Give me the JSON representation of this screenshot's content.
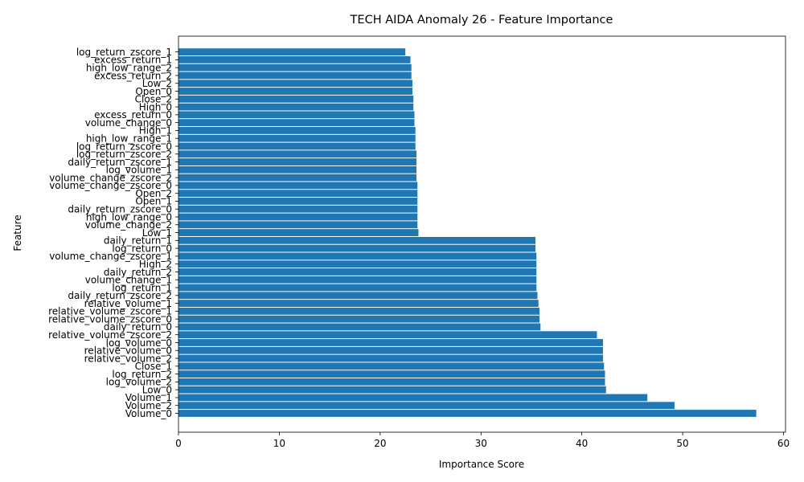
{
  "chart_data": {
    "type": "bar",
    "orientation": "horizontal",
    "title": "TECH AIDA Anomaly 26 - Feature Importance",
    "xlabel": "Importance Score",
    "ylabel": "Feature",
    "xlim": [
      0,
      60.2
    ],
    "xticks": [
      0,
      10,
      20,
      30,
      40,
      50,
      60
    ],
    "grid": false,
    "bar_color": "#1f77b4",
    "categories": [
      "Volume_0",
      "Volume_2",
      "Volume_1",
      "Low_0",
      "log_volume_2",
      "log_return_2",
      "Close_1",
      "relative_volume_2",
      "relative_volume_0",
      "log_volume_0",
      "relative_volume_zscore_2",
      "daily_return_0",
      "relative_volume_zscore_0",
      "relative_volume_zscore_1",
      "relative_volume_1",
      "daily_return_zscore_2",
      "log_return_1",
      "volume_change_1",
      "daily_return_2",
      "High_2",
      "volume_change_zscore_1",
      "log_return_0",
      "daily_return_1",
      "Low_1",
      "volume_change_2",
      "high_low_range_0",
      "daily_return_zscore_0",
      "Open_1",
      "Open_2",
      "volume_change_zscore_0",
      "volume_change_zscore_2",
      "log_volume_1",
      "daily_return_zscore_1",
      "log_return_zscore_2",
      "log_return_zscore_0",
      "high_low_range_1",
      "High_1",
      "volume_change_0",
      "excess_return_0",
      "High_0",
      "Close_2",
      "Open_0",
      "Low_2",
      "excess_return_2",
      "high_low_range_2",
      "excess_return_1",
      "log_return_zscore_1"
    ],
    "values": [
      57.3,
      49.2,
      46.5,
      42.4,
      42.3,
      42.3,
      42.2,
      42.1,
      42.1,
      42.1,
      41.5,
      35.9,
      35.8,
      35.8,
      35.7,
      35.6,
      35.5,
      35.5,
      35.5,
      35.5,
      35.5,
      35.4,
      35.4,
      23.8,
      23.7,
      23.7,
      23.7,
      23.7,
      23.7,
      23.7,
      23.6,
      23.6,
      23.6,
      23.6,
      23.5,
      23.5,
      23.5,
      23.4,
      23.4,
      23.3,
      23.3,
      23.2,
      23.2,
      23.1,
      23.1,
      23.0,
      22.5
    ]
  }
}
